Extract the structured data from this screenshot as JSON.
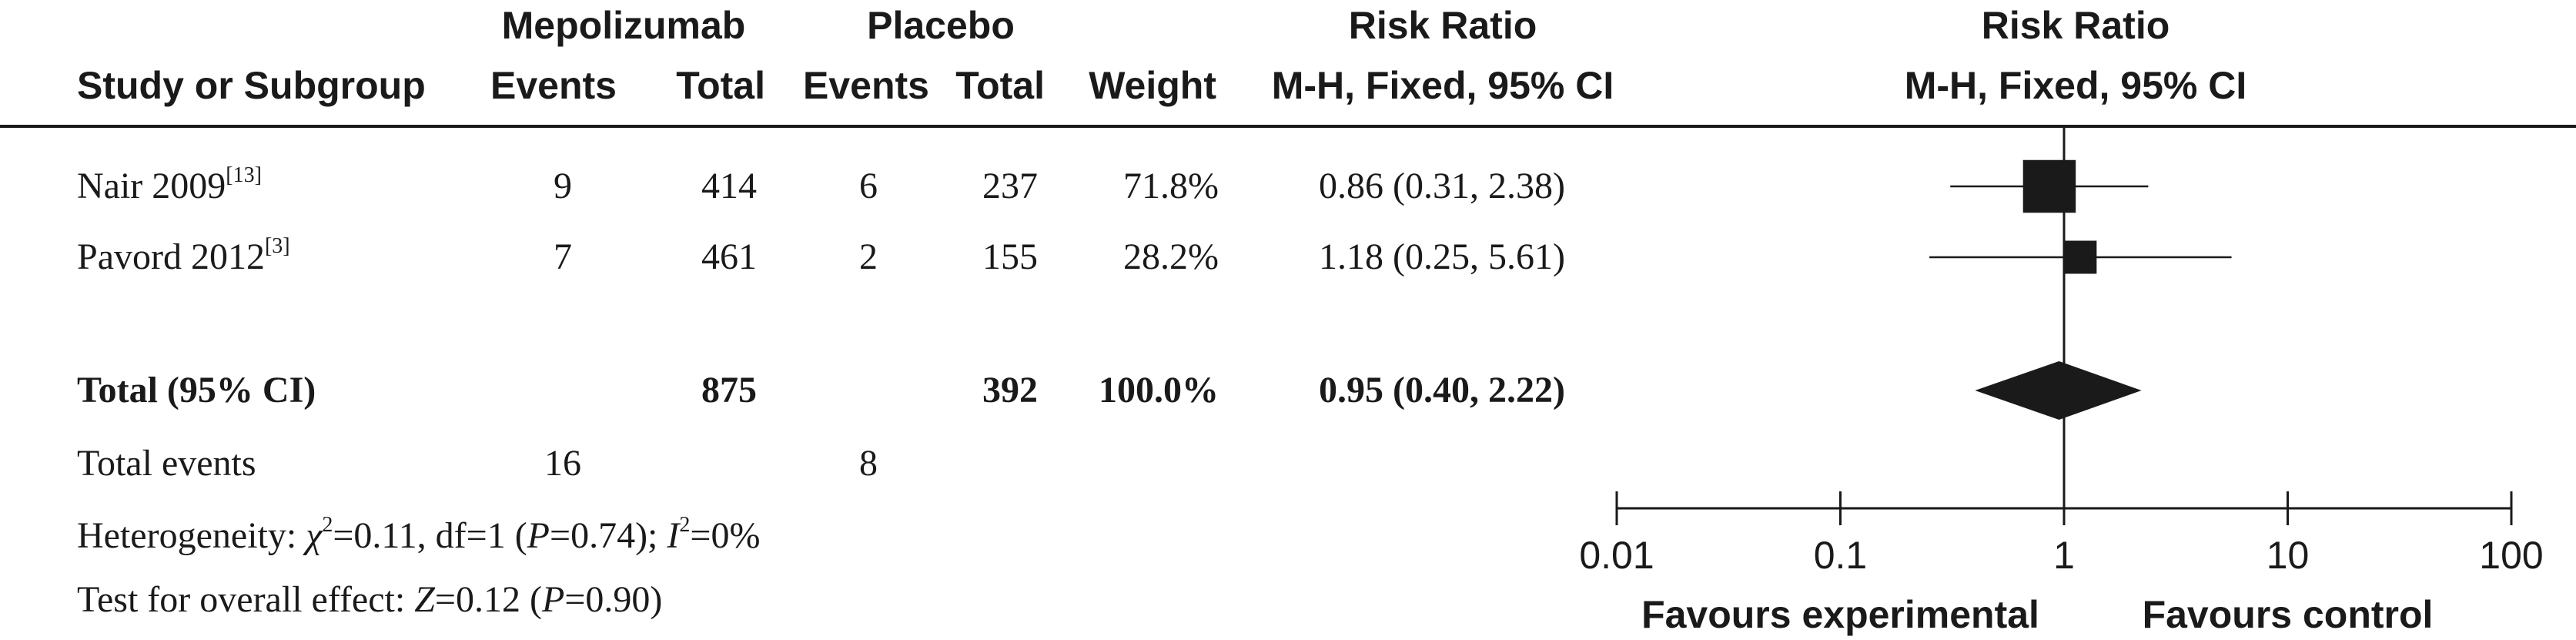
{
  "header": {
    "group1": "Mepolizumab",
    "group2": "Placebo",
    "rr_title": "Risk Ratio",
    "rr_method": "M-H, Fixed, 95% CI",
    "plot_title": "Risk Ratio",
    "plot_method": "M-H, Fixed, 95% CI",
    "col_study": "Study or Subgroup",
    "col_events1": "Events",
    "col_total1": "Total",
    "col_events2": "Events",
    "col_total2": "Total",
    "col_weight": "Weight"
  },
  "studies": [
    {
      "name": "Nair 2009",
      "ref": "[13]",
      "events1": "9",
      "total1": "414",
      "events2": "6",
      "total2": "237",
      "weight": "71.8%",
      "ci_text": "0.86 (0.31, 2.38)"
    },
    {
      "name": "Pavord 2012",
      "ref": "[3]",
      "events1": "7",
      "total1": "461",
      "events2": "2",
      "total2": "155",
      "weight": "28.2%",
      "ci_text": "1.18 (0.25, 5.61)"
    }
  ],
  "total": {
    "label": "Total (95% CI)",
    "total1": "875",
    "total2": "392",
    "weight": "100.0%",
    "ci_text": "0.95 (0.40, 2.22)"
  },
  "events": {
    "label": "Total events",
    "events1": "16",
    "events2": "8"
  },
  "footer": {
    "het_prefix": "Heterogeneity: ",
    "het_chi": "χ",
    "het_chi_sup": "2",
    "het_mid": "=0.11, df=1 (",
    "het_p": "P",
    "het_pval": "=0.74); ",
    "het_i": "I",
    "het_i_sup": "2",
    "het_ival": "=0%",
    "test_prefix": "Test for overall effect: ",
    "test_z": "Z",
    "test_zval": "=0.12 (",
    "test_p": "P",
    "test_pval": "=0.90)"
  },
  "chart_data": {
    "type": "forest",
    "scale": "log",
    "xlim": [
      0.01,
      100
    ],
    "ticks": [
      0.01,
      0.1,
      1,
      10,
      100
    ],
    "tick_labels": [
      "0.01",
      "0.1",
      "1",
      "10",
      "100"
    ],
    "null_value": 1,
    "points": [
      {
        "study": "Nair 2009",
        "rr": 0.86,
        "lower": 0.31,
        "upper": 2.38,
        "weight": 71.8
      },
      {
        "study": "Pavord 2012",
        "rr": 1.18,
        "lower": 0.25,
        "upper": 5.61,
        "weight": 28.2
      }
    ],
    "pooled": {
      "rr": 0.95,
      "lower": 0.4,
      "upper": 2.22
    },
    "favours_left": "Favours experimental",
    "favours_right": "Favours control"
  }
}
